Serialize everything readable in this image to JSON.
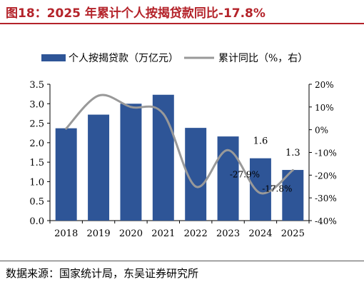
{
  "figure_title": "图18：2025 年累计个人按揭贷款同比-17.8%",
  "source": "数据来源：国家统计局，东吴证券研究所",
  "chart_data": {
    "type": "bar",
    "categories": [
      "2018",
      "2019",
      "2020",
      "2021",
      "2022",
      "2023",
      "2024",
      "2025"
    ],
    "series": [
      {
        "name": "个人按揭贷款（万亿元）",
        "type": "bar",
        "axis": "left",
        "color": "#2e5597",
        "values": [
          2.37,
          2.72,
          3.0,
          3.23,
          2.38,
          2.16,
          1.6,
          1.3
        ],
        "data_labels": [
          "",
          "",
          "",
          "",
          "",
          "",
          "1.6",
          "1.3"
        ]
      },
      {
        "name": "累计同比（%，右）",
        "type": "line",
        "axis": "right",
        "color": "#999999",
        "values": [
          0.5,
          15.0,
          10.0,
          7.0,
          -25.0,
          -9.0,
          -27.9,
          -17.8
        ],
        "data_labels": [
          "",
          "",
          "",
          "",
          "",
          "",
          "-27.9%",
          "-17.8%"
        ]
      }
    ],
    "left_axis": {
      "min": 0,
      "max": 3.5,
      "ticks": [
        "0.0",
        "0.5",
        "1.0",
        "1.5",
        "2.0",
        "2.5",
        "3.0",
        "3.5"
      ]
    },
    "right_axis": {
      "min": -40,
      "max": 20,
      "ticks": [
        "-40%",
        "-30%",
        "-20%",
        "-10%",
        "0%",
        "10%",
        "20%"
      ]
    },
    "legend_position": "top",
    "grid": false
  }
}
